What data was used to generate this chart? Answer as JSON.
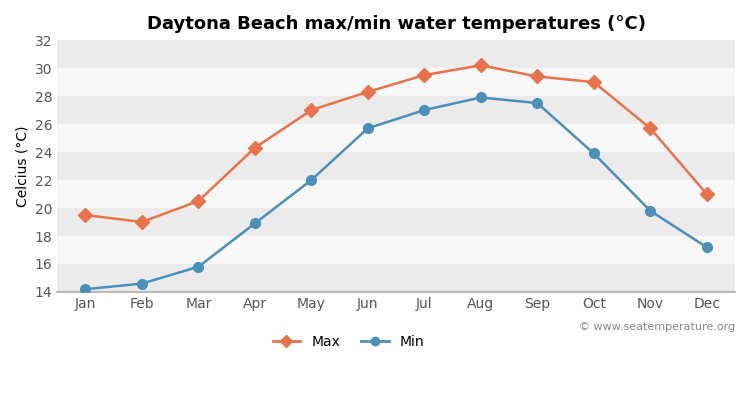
{
  "title": "Daytona Beach max/min water temperatures (°C)",
  "months": [
    "Jan",
    "Feb",
    "Mar",
    "Apr",
    "May",
    "Jun",
    "Jul",
    "Aug",
    "Sep",
    "Oct",
    "Nov",
    "Dec"
  ],
  "max_temps": [
    19.5,
    19.0,
    20.5,
    24.3,
    27.0,
    28.3,
    29.5,
    30.2,
    29.4,
    29.0,
    25.7,
    21.0
  ],
  "min_temps": [
    14.2,
    14.6,
    15.8,
    18.9,
    22.0,
    25.7,
    27.0,
    27.9,
    27.5,
    23.9,
    19.8,
    17.2
  ],
  "max_color": "#e8734a",
  "min_color": "#4a90b8",
  "fig_bg_color": "#ffffff",
  "band_colors": [
    "#ebebeb",
    "#f7f7f7"
  ],
  "ylabel": "Celcius (°C)",
  "ylim": [
    14,
    32
  ],
  "yticks": [
    14,
    16,
    18,
    20,
    22,
    24,
    26,
    28,
    30,
    32
  ],
  "watermark": "© www.seatemperature.org",
  "legend_max": "Max",
  "legend_min": "Min",
  "title_fontsize": 13,
  "axis_fontsize": 10,
  "tick_fontsize": 10
}
